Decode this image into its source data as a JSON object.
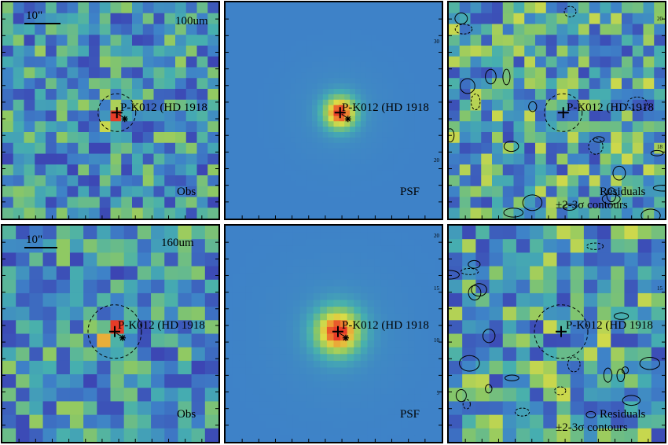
{
  "source_name": "P-K012 (HD 1918",
  "scale_bar": "10\"",
  "colors": {
    "background_blue": "#3f87c6",
    "frame": "#000000",
    "contour": "#000000"
  },
  "rows": [
    {
      "band": "100um",
      "panels": [
        {
          "kind": "obs",
          "label": "Obs",
          "seed": 11,
          "pixels": 20,
          "ticks": []
        },
        {
          "kind": "psf",
          "label": "PSF",
          "seed": 21,
          "pixels": 40,
          "ticks": [
            "30",
            "20"
          ]
        },
        {
          "kind": "res",
          "label": "Residuals",
          "label2": "±2-3σ contours",
          "seed": 31,
          "pixels": 20,
          "ticks": [
            "20",
            "18"
          ]
        }
      ]
    },
    {
      "band": "160um",
      "panels": [
        {
          "kind": "obs",
          "label": "Obs",
          "seed": 12,
          "pixels": 16,
          "ticks": []
        },
        {
          "kind": "psf",
          "label": "PSF",
          "seed": 22,
          "pixels": 32,
          "ticks": [
            "20",
            "15",
            "10",
            "5"
          ]
        },
        {
          "kind": "res",
          "label": "Residuals",
          "label2": "±2-3σ contours",
          "seed": 32,
          "pixels": 16,
          "ticks": [
            "15"
          ]
        }
      ]
    }
  ]
}
